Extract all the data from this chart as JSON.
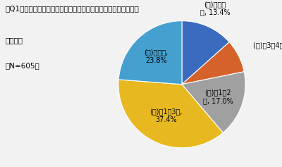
{
  "title_line1": "【Q1】アルコールを伴う食事（以下、食事）に行く頻度を教えて",
  "title_line2": "下さい。",
  "title_line3": "（N=605）",
  "sizes": [
    13.4,
    8.4,
    17.0,
    37.4,
    23.8
  ],
  "colors": [
    "#3a6bbf",
    "#d4622a",
    "#a0a0a0",
    "#e8b820",
    "#45a0d0"
  ],
  "background_color": "#f2f2f2",
  "title_fontsize": 7.5,
  "label_fontsize": 7.0,
  "startangle": 90
}
